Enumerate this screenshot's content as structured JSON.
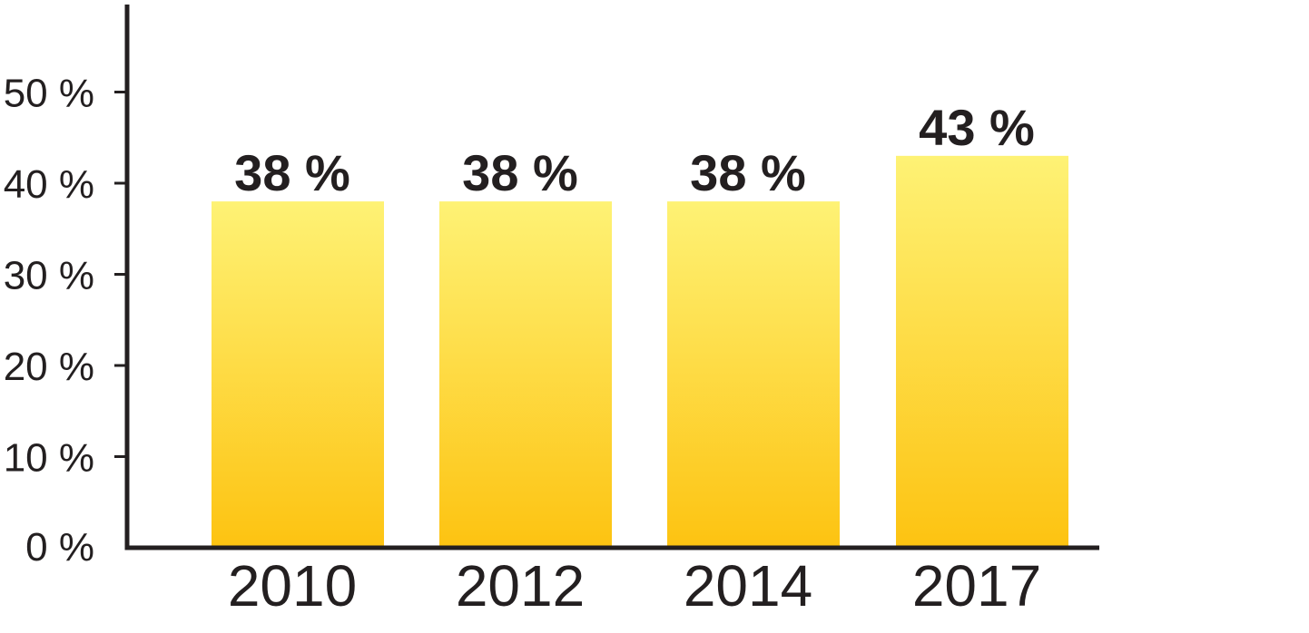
{
  "chart_data": {
    "type": "bar",
    "categories": [
      "2010",
      "2012",
      "2014",
      "2017"
    ],
    "values": [
      38,
      38,
      38,
      43
    ],
    "data_labels": [
      "38 %",
      "38 %",
      "38 %",
      "43 %"
    ],
    "y_ticks": [
      0,
      10,
      20,
      30,
      40,
      50
    ],
    "y_tick_labels": [
      "0 %",
      "10 %",
      "20 %",
      "30 %",
      "40 %",
      "50 %"
    ],
    "ylim": [
      0,
      60
    ],
    "title": "",
    "xlabel": "",
    "ylabel": "",
    "grid": false,
    "legend": "none",
    "colors": {
      "bar_top": "#FEF275",
      "bar_bottom": "#FDC311",
      "axis": "#231F20",
      "text": "#231F20"
    }
  }
}
